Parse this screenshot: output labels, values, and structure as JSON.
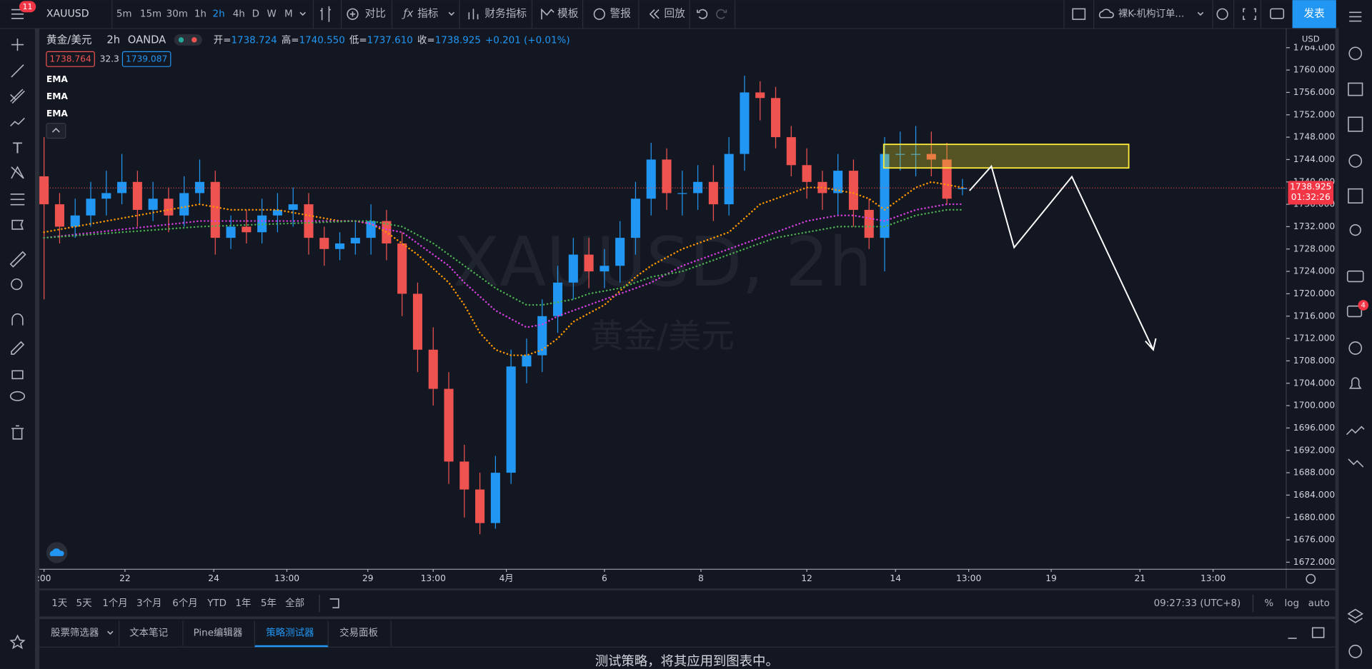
{
  "toolbar": {
    "badge": "11",
    "symbol": "XAUUSD",
    "intervals": [
      "5m",
      "15m",
      "30m",
      "1h",
      "2h",
      "4h",
      "D",
      "W",
      "M"
    ],
    "buttons": [
      "对比",
      "指标",
      "财务指标",
      "模板",
      "警报",
      "回放"
    ],
    "layout": "裸K-机构订单...",
    "publish": "发表"
  },
  "legend": {
    "symbol": "黄金/美元",
    "interval": "2h",
    "exchange": "OANDA",
    "ohlc": [
      {
        "label": "开=",
        "value": "1738.724"
      },
      {
        "label": "高=",
        "value": "1740.550"
      },
      {
        "label": "低=",
        "value": "1737.610"
      },
      {
        "label": "收=",
        "value": "1738.925"
      }
    ],
    "change": "+0.201 (+0.01%)",
    "bid": "1738.764",
    "spread": "32.3",
    "ask": "1739.087"
  },
  "watermark": {
    "title": "XAUUSD, 2h",
    "subtitle": "黄金/美元"
  },
  "chart_data": {
    "type": "candlestick",
    "up_color": "#2196f3",
    "down_color": "#ef5350",
    "open": [
      1741,
      1736,
      1732,
      1734,
      1737,
      1738,
      1740,
      1735,
      1737,
      1734,
      1738,
      1740,
      1730,
      1732,
      1731,
      1734,
      1735,
      1736,
      1730,
      1728,
      1729,
      1730,
      1733,
      1729,
      1720,
      1710,
      1703,
      1690,
      1685,
      1679,
      1688,
      1707,
      1709,
      1716,
      1722,
      1727,
      1724,
      1725,
      1730,
      1737,
      1744,
      1738,
      1738,
      1740,
      1736,
      1745,
      1756,
      1755,
      1748,
      1743,
      1740,
      1738,
      1742,
      1735,
      1730,
      1745,
      1745,
      1745,
      1744,
      1738.724
    ],
    "high": [
      1748,
      1738,
      1737,
      1740,
      1742,
      1745,
      1742,
      1740,
      1739,
      1741,
      1744,
      1742,
      1734,
      1735,
      1737,
      1738,
      1739,
      1738,
      1732,
      1731,
      1733,
      1736,
      1735,
      1731,
      1722,
      1714,
      1706,
      1693,
      1688,
      1691,
      1710,
      1712,
      1719,
      1725,
      1730,
      1730,
      1728,
      1733,
      1740,
      1747,
      1746,
      1742,
      1743,
      1743,
      1748,
      1759,
      1758,
      1757,
      1750,
      1746,
      1742,
      1745,
      1744,
      1737,
      1748,
      1749,
      1750,
      1749,
      1747,
      1740.55
    ],
    "low": [
      1719,
      1729,
      1730,
      1732,
      1734,
      1736,
      1732,
      1733,
      1731,
      1732,
      1736,
      1727,
      1728,
      1729,
      1729,
      1731,
      1732,
      1727,
      1725,
      1726,
      1727,
      1727,
      1726,
      1716,
      1706,
      1700,
      1686,
      1680,
      1677,
      1678,
      1686,
      1704,
      1706,
      1713,
      1719,
      1721,
      1721,
      1722,
      1727,
      1734,
      1735,
      1734,
      1735,
      1733,
      1734,
      1742,
      1751,
      1746,
      1741,
      1737,
      1735,
      1734,
      1732,
      1728,
      1724,
      1742,
      1741,
      1741,
      1736,
      1737.61
    ],
    "close": [
      1736,
      1732,
      1734,
      1737,
      1738,
      1740,
      1735,
      1737,
      1734,
      1738,
      1740,
      1730,
      1732,
      1731,
      1734,
      1735,
      1736,
      1730,
      1728,
      1729,
      1730,
      1733,
      1729,
      1720,
      1710,
      1703,
      1690,
      1685,
      1679,
      1688,
      1707,
      1709,
      1716,
      1722,
      1727,
      1724,
      1725,
      1730,
      1737,
      1744,
      1738,
      1738,
      1740,
      1736,
      1745,
      1756,
      1755,
      1748,
      1743,
      1740,
      1738,
      1742,
      1735,
      1730,
      1745,
      1745,
      1745,
      1744,
      1737,
      1738.925
    ],
    "series": [
      {
        "name": "EMA",
        "color": "#ff9800",
        "values": [
          1731,
          1731.5,
          1732,
          1732.5,
          1733,
          1733.5,
          1734,
          1734.5,
          1735,
          1735.5,
          1736,
          1735.5,
          1735,
          1735,
          1735,
          1735,
          1734.5,
          1734,
          1733.5,
          1733,
          1733,
          1732.5,
          1731,
          1729,
          1727,
          1724.5,
          1722,
          1718,
          1713,
          1710,
          1709,
          1709,
          1710,
          1712,
          1715,
          1716.5,
          1718,
          1720.5,
          1723,
          1725,
          1726.5,
          1728,
          1729,
          1730,
          1731,
          1733.5,
          1736,
          1737,
          1738,
          1739,
          1739,
          1738.5,
          1738,
          1737,
          1735,
          1737,
          1739,
          1740,
          1739.5,
          1739
        ]
      },
      {
        "name": "EMA",
        "color": "#d53fe0",
        "values": [
          1730,
          1730.3,
          1730.6,
          1730.9,
          1731.2,
          1731.5,
          1731.8,
          1732.1,
          1732.4,
          1732.7,
          1733,
          1733,
          1733,
          1733,
          1733,
          1733,
          1733,
          1733,
          1733,
          1733,
          1733,
          1732.5,
          1731.5,
          1731,
          1729,
          1727,
          1725,
          1722,
          1719.5,
          1717,
          1715.5,
          1714,
          1714.5,
          1716,
          1717,
          1718,
          1719,
          1720,
          1721,
          1722,
          1723.5,
          1725,
          1726,
          1727,
          1728,
          1729,
          1730,
          1731,
          1732,
          1733,
          1733.5,
          1734,
          1734,
          1733.5,
          1733,
          1734,
          1735,
          1735.5,
          1736,
          1736
        ]
      },
      {
        "name": "EMA",
        "color": "#4caf50",
        "values": [
          1730,
          1730.2,
          1730.4,
          1730.6,
          1730.8,
          1731,
          1731.2,
          1731.4,
          1731.6,
          1731.8,
          1732,
          1732.1,
          1732.2,
          1732.3,
          1732.4,
          1732.5,
          1732.6,
          1732.7,
          1732.8,
          1732.9,
          1733,
          1733,
          1732.5,
          1732,
          1730.5,
          1729,
          1727,
          1725,
          1723,
          1721,
          1719.5,
          1718,
          1718,
          1718.5,
          1719,
          1720,
          1720.5,
          1721,
          1722,
          1723,
          1723.5,
          1724,
          1725,
          1726,
          1727,
          1728,
          1729,
          1730,
          1730.5,
          1731,
          1731.5,
          1732,
          1732,
          1732,
          1732,
          1733,
          1734,
          1734.5,
          1735,
          1735
        ]
      }
    ],
    "ylim": [
      1670.9,
      1767.35
    ],
    "yticks": [
      {
        "value": 1672,
        "label": "1672.000"
      },
      {
        "value": 1676,
        "label": "1676.000"
      },
      {
        "value": 1680,
        "label": "1680.000"
      },
      {
        "value": 1684,
        "label": "1684.000"
      },
      {
        "value": 1688,
        "label": "1688.000"
      },
      {
        "value": 1692,
        "label": "1692.000"
      },
      {
        "value": 1696,
        "label": "1696.000"
      },
      {
        "value": 1700,
        "label": "1700.000"
      },
      {
        "value": 1704,
        "label": "1704.000"
      },
      {
        "value": 1708,
        "label": "1708.000"
      },
      {
        "value": 1712,
        "label": "1712.000"
      },
      {
        "value": 1716,
        "label": "1716.000"
      },
      {
        "value": 1720,
        "label": "1720.000"
      },
      {
        "value": 1724,
        "label": "1724.000"
      },
      {
        "value": 1728,
        "label": "1728.000"
      },
      {
        "value": 1732,
        "label": "1732.000"
      },
      {
        "value": 1736,
        "label": "1736.000"
      },
      {
        "value": 1740,
        "label": "1740.000"
      },
      {
        "value": 1744,
        "label": "1744.000"
      },
      {
        "value": 1748,
        "label": "1748.000"
      },
      {
        "value": 1752,
        "label": "1752.000"
      },
      {
        "value": 1756,
        "label": "1756.000"
      },
      {
        "value": 1760,
        "label": "1760.000"
      },
      {
        "value": 1764,
        "label": "1764.000"
      }
    ],
    "xlim": [
      -0.3,
      79.8
    ],
    "xticks": [
      {
        "value": 0,
        "label": ":00"
      },
      {
        "value": 5.2,
        "label": "22"
      },
      {
        "value": 10.9,
        "label": "24"
      },
      {
        "value": 15.6,
        "label": "13:00"
      },
      {
        "value": 20.8,
        "label": "29"
      },
      {
        "value": 25,
        "label": "13:00"
      },
      {
        "value": 29.7,
        "label": "4月"
      },
      {
        "value": 36,
        "label": "6"
      },
      {
        "value": 42.2,
        "label": "8"
      },
      {
        "value": 49,
        "label": "12"
      },
      {
        "value": 54.7,
        "label": "14"
      },
      {
        "value": 59.4,
        "label": "13:00"
      },
      {
        "value": 64.7,
        "label": "19"
      },
      {
        "value": 70.4,
        "label": "21"
      },
      {
        "value": 75.1,
        "label": "13:00"
      }
    ],
    "currency": "USD",
    "countdown": "01:32:26"
  },
  "bottom_bar": {
    "ranges": [
      "1天",
      "5天",
      "1个月",
      "3个月",
      "6个月",
      "YTD",
      "1年",
      "5年",
      "全部"
    ],
    "time": "09:27:33 (UTC+8)",
    "options": [
      "%",
      "log",
      "auto"
    ]
  },
  "panel": {
    "tabs": [
      "股票筛选器",
      "文本笔记",
      "Pine编辑器",
      "策略测试器",
      "交易面板"
    ],
    "message": "测试策略，将其应用到图表中。"
  },
  "sidebar_badge": "4"
}
